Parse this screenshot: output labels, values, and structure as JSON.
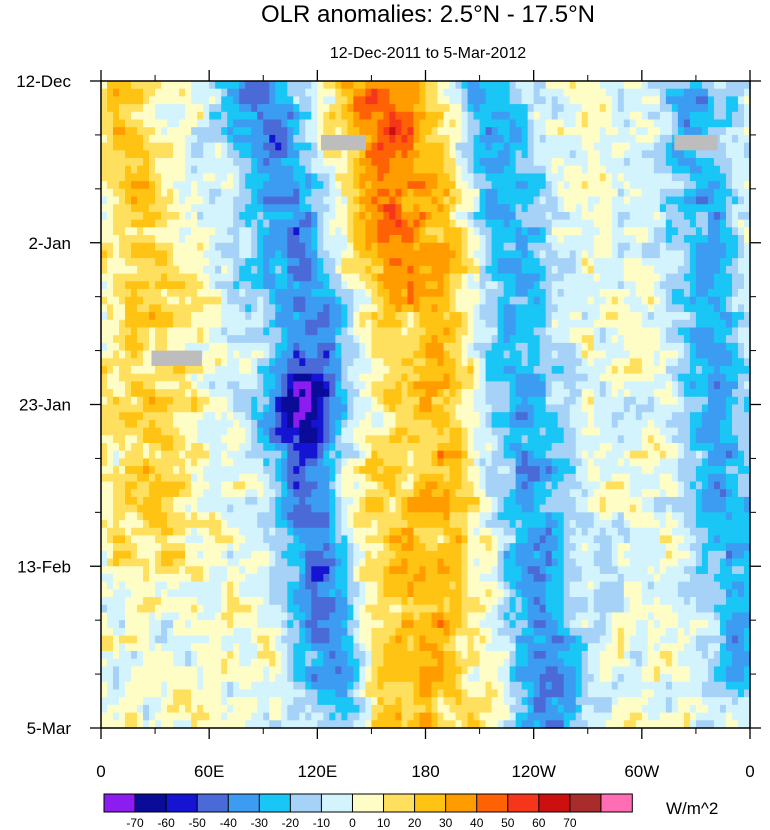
{
  "chart_data": {
    "type": "heatmap",
    "title": "OLR anomalies: 2.5°N - 17.5°N",
    "subtitle": "12-Dec-2011 to 5-Mar-2012",
    "xlabel": "",
    "ylabel": "",
    "x_ticks": [
      "0",
      "60E",
      "120E",
      "180",
      "120W",
      "60W",
      "0"
    ],
    "x_tick_values": [
      0,
      60,
      120,
      180,
      240,
      300,
      360
    ],
    "xlim": [
      0,
      360
    ],
    "y_ticks": [
      "12-Dec",
      "2-Jan",
      "23-Jan",
      "13-Feb",
      "5-Mar"
    ],
    "y_tick_values": [
      0,
      21,
      42,
      63,
      84
    ],
    "ylim": [
      0,
      84
    ],
    "y_direction": "down",
    "units": "W/m^2",
    "levels": [
      -70,
      -60,
      -50,
      -40,
      -30,
      -20,
      -10,
      0,
      10,
      20,
      30,
      40,
      50,
      60,
      70
    ],
    "level_labels": [
      "-70",
      "-60",
      "-50",
      "-40",
      "-30",
      "-20",
      "-10",
      "0",
      "10",
      "20",
      "30",
      "40",
      "50",
      "60",
      "70"
    ],
    "colors": [
      "#8c1cf0",
      "#0b0b99",
      "#1414d2",
      "#4a6ad8",
      "#3c9cf2",
      "#19c6f5",
      "#a6d2f8",
      "#d4f4fd",
      "#fffdc6",
      "#ffe05e",
      "#ffc314",
      "#ff9d00",
      "#ff6205",
      "#f5361b",
      "#cc0f0f",
      "#a82c2c",
      "#ff6eb4"
    ],
    "missing_color": "#bdbdbd",
    "missing_regions": [
      {
        "lon": [
          122,
          147
        ],
        "day": [
          7,
          9
        ]
      },
      {
        "lon": [
          318,
          342
        ],
        "day": [
          7,
          9
        ]
      },
      {
        "lon": [
          28,
          56
        ],
        "day": [
          35,
          37
        ]
      }
    ],
    "features": [
      {
        "desc": "positive band, warm, near dateline, broadest late January",
        "lon_center": [
          170,
          182,
          185,
          178,
          175
        ],
        "day": [
          0,
          21,
          42,
          63,
          84
        ],
        "width": 28,
        "amplitude": 25
      },
      {
        "desc": "negative band, Indian Ocean to western Pacific, early season",
        "lon_center": [
          90,
          102,
          118
        ],
        "day": [
          0,
          15,
          35
        ],
        "width": 18,
        "amplitude": -40
      },
      {
        "desc": "negative band, western Pacific, mid to late season",
        "lon_center": [
          110,
          120,
          128
        ],
        "day": [
          50,
          63,
          72
        ],
        "width": 14,
        "amplitude": -45
      },
      {
        "desc": "negative band, east of dateline",
        "lon_center": [
          210,
          225,
          232,
          242,
          250
        ],
        "day": [
          0,
          20,
          42,
          63,
          84
        ],
        "width": 16,
        "amplitude": -38
      },
      {
        "desc": "negative band, eastern Pacific / Atlantic",
        "lon_center": [
          330,
          338,
          345,
          355
        ],
        "day": [
          10,
          30,
          50,
          70
        ],
        "width": 14,
        "amplitude": -32
      },
      {
        "desc": "positive patch, western Indian Ocean",
        "lon_center": [
          10,
          20,
          28
        ],
        "day": [
          5,
          25,
          55
        ],
        "width": 18,
        "amplitude": 18
      },
      {
        "desc": "positive patch, central Pacific early December",
        "lon_center": [
          150,
          155
        ],
        "day": [
          0,
          14
        ],
        "width": 20,
        "amplitude": 22
      }
    ]
  },
  "colorbar": {
    "unit_label": "W/m^2"
  }
}
